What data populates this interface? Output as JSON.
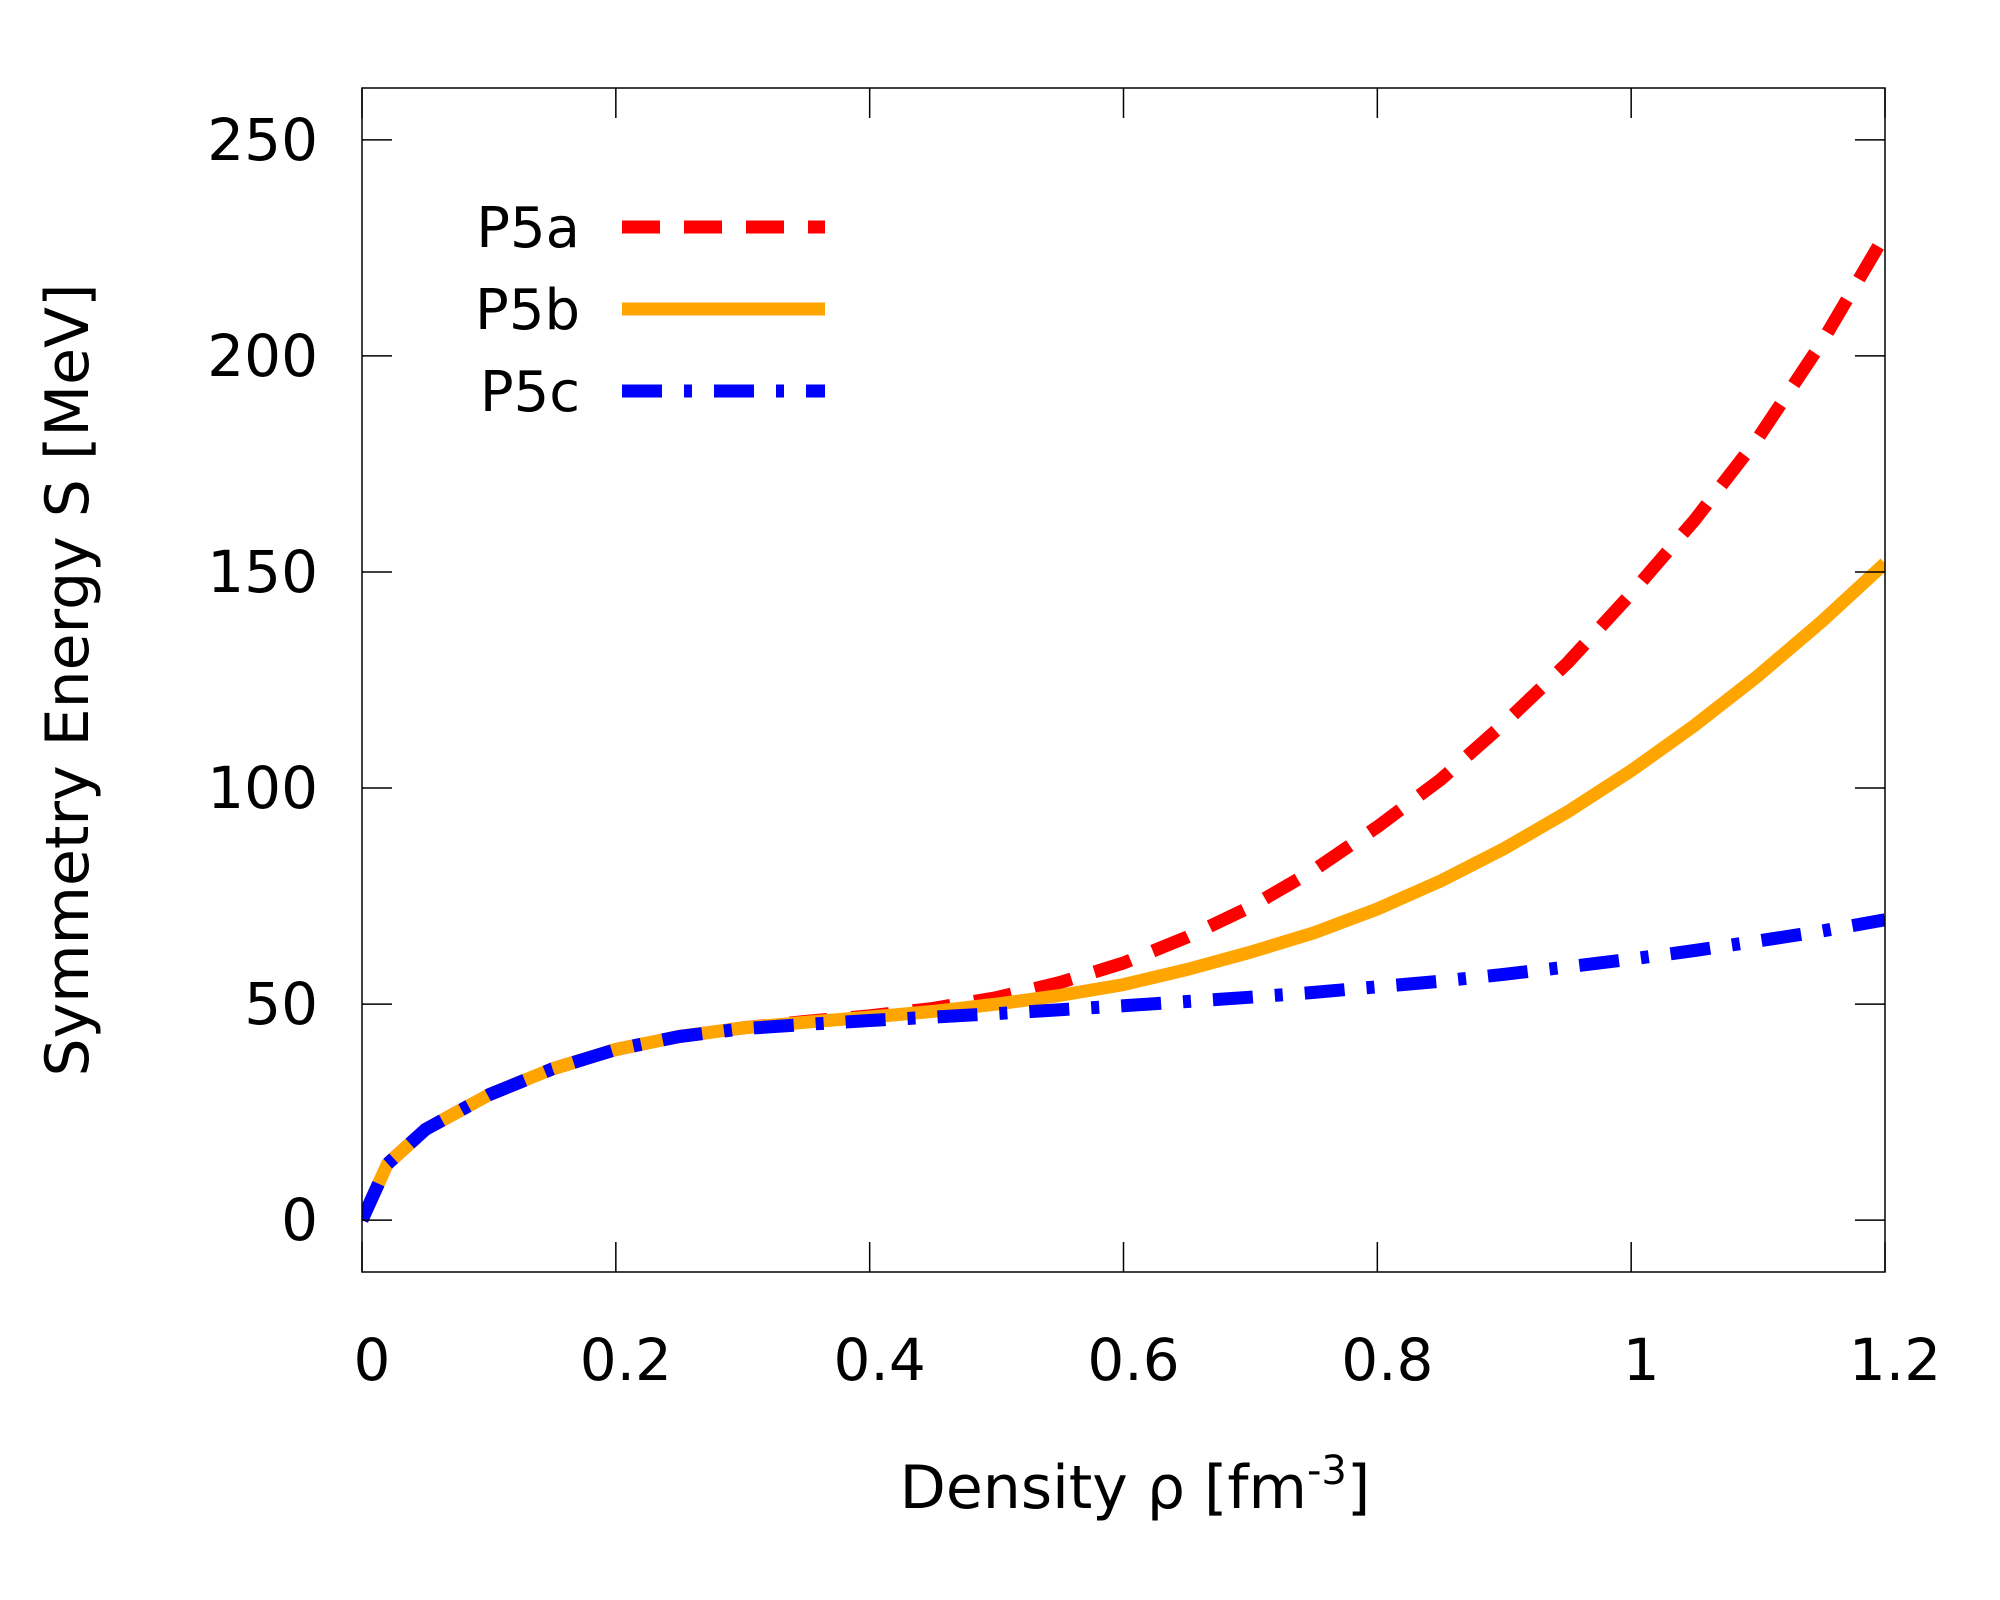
{
  "chart_data": {
    "type": "line",
    "title": "",
    "xlabel": "Density ρ [fm",
    "xlabel_sup": "-3",
    "xlabel_end": "]",
    "ylabel": "Symmetry Energy S [MeV]",
    "xlim": [
      0,
      1.2
    ],
    "ylim": [
      -12,
      262
    ],
    "xticks": [
      0,
      0.2,
      0.4,
      0.6,
      0.8,
      1,
      1.2
    ],
    "xtick_labels": [
      "0",
      "0.2",
      "0.4",
      "0.6",
      "0.8",
      "1",
      "1.2"
    ],
    "yticks": [
      0,
      50,
      100,
      150,
      200,
      250
    ],
    "ytick_labels": [
      "0",
      "50",
      "100",
      "150",
      "200",
      "250"
    ],
    "grid": false,
    "legend_position": "top-left",
    "series": [
      {
        "name": "P5a",
        "color": "#ff0000",
        "style": "dashed",
        "x": [
          0,
          0.02,
          0.05,
          0.1,
          0.15,
          0.2,
          0.25,
          0.3,
          0.35,
          0.4,
          0.45,
          0.5,
          0.55,
          0.6,
          0.65,
          0.7,
          0.75,
          0.8,
          0.85,
          0.9,
          0.95,
          1.0,
          1.05,
          1.1,
          1.15,
          1.2
        ],
        "y": [
          0,
          13,
          21,
          29,
          35,
          39.5,
          42.5,
          44.5,
          46,
          47.3,
          49,
          51.5,
          55,
          59.5,
          65.5,
          72.5,
          81,
          91,
          102,
          115,
          129,
          145,
          162,
          181,
          203,
          228
        ]
      },
      {
        "name": "P5b",
        "color": "#ffa500",
        "style": "solid",
        "x": [
          0,
          0.02,
          0.05,
          0.1,
          0.15,
          0.2,
          0.25,
          0.3,
          0.35,
          0.4,
          0.45,
          0.5,
          0.55,
          0.6,
          0.65,
          0.7,
          0.75,
          0.8,
          0.85,
          0.9,
          0.95,
          1.0,
          1.05,
          1.1,
          1.15,
          1.2
        ],
        "y": [
          0,
          13,
          21,
          29,
          35,
          39.5,
          42.5,
          44.5,
          45.8,
          47,
          48.3,
          50,
          52,
          54.5,
          58,
          62,
          66.5,
          72,
          78.5,
          86,
          94.5,
          104,
          114.5,
          126,
          138.5,
          152
        ]
      },
      {
        "name": "P5c",
        "color": "#0000ff",
        "style": "dashdot",
        "x": [
          0,
          0.02,
          0.05,
          0.1,
          0.15,
          0.2,
          0.25,
          0.3,
          0.35,
          0.4,
          0.45,
          0.5,
          0.55,
          0.6,
          0.65,
          0.7,
          0.75,
          0.8,
          0.85,
          0.9,
          0.95,
          1.0,
          1.05,
          1.1,
          1.15,
          1.2
        ],
        "y": [
          0,
          13,
          21,
          29,
          35,
          39.5,
          42.5,
          44.3,
          45.3,
          46.2,
          47,
          47.8,
          48.7,
          49.6,
          50.6,
          51.6,
          52.7,
          54,
          55.3,
          56.9,
          58.6,
          60.4,
          62.4,
          64.6,
          66.9,
          69.5
        ]
      }
    ]
  }
}
